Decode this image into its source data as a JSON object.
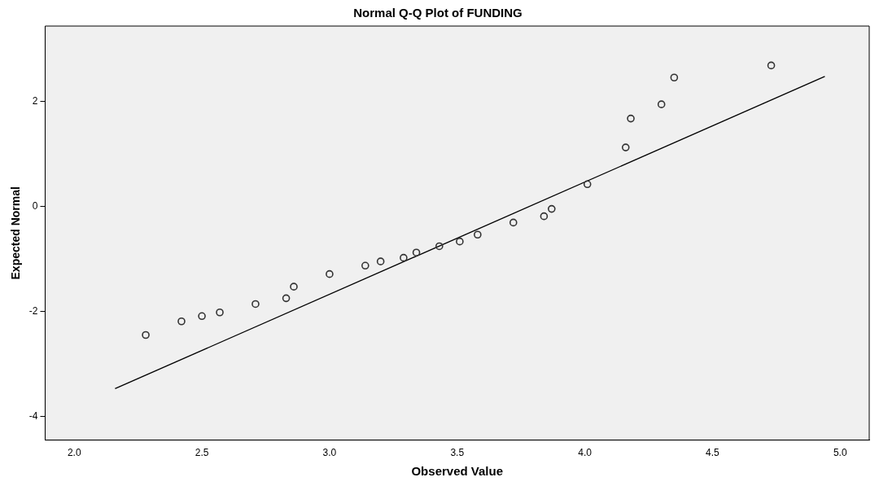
{
  "chart_data": {
    "type": "scatter",
    "title": "Normal Q-Q Plot of FUNDING",
    "xlabel": "Observed Value",
    "ylabel": "Expected Normal",
    "marker": "circle",
    "legend": false,
    "grid": false,
    "xlim": [
      1.886,
      5.114
    ],
    "ylim": [
      -4.45,
      3.43
    ],
    "xticks": [
      {
        "value": 2,
        "label": "2.0"
      },
      {
        "value": 2.5,
        "label": "2.5"
      },
      {
        "value": 3,
        "label": "3.0"
      },
      {
        "value": 3.5,
        "label": "3.5"
      },
      {
        "value": 4,
        "label": "4.0"
      },
      {
        "value": 4.5,
        "label": "4.5"
      },
      {
        "value": 5,
        "label": "5.0"
      }
    ],
    "yticks": [
      -4,
      -2,
      0,
      2
    ],
    "series": [
      {
        "type": "scatter",
        "color": "#333333",
        "x": [
          2.28,
          2.42,
          2.5,
          2.57,
          2.71,
          2.83,
          2.86,
          3.0,
          3.14,
          3.2,
          3.29,
          3.34,
          3.43,
          3.51,
          3.58,
          3.72,
          3.84,
          3.87,
          4.01,
          4.16,
          4.18,
          4.3,
          4.35,
          4.73
        ],
        "values": [
          -2.45,
          -2.19,
          -2.09,
          -2.02,
          -1.86,
          -1.75,
          -1.53,
          -1.29,
          -1.13,
          -1.05,
          -0.98,
          -0.88,
          -0.76,
          -0.67,
          -0.54,
          -0.31,
          -0.19,
          -0.05,
          0.42,
          1.12,
          1.67,
          1.94,
          2.45,
          2.68
        ]
      },
      {
        "type": "line",
        "color": "#000000",
        "marker": "none",
        "x": [
          2.16,
          4.94
        ],
        "values": [
          -3.47,
          2.47
        ]
      }
    ]
  }
}
